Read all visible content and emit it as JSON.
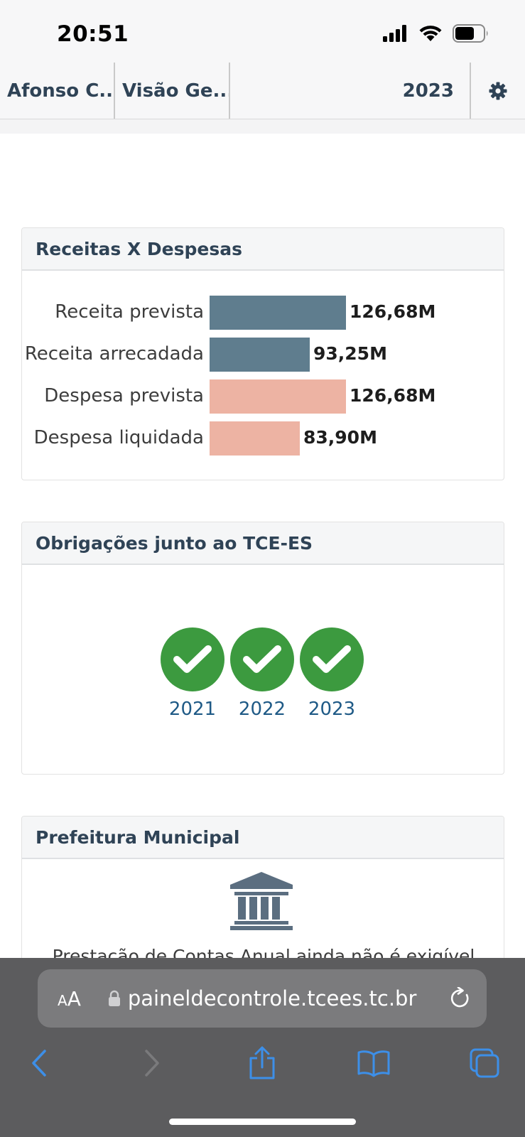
{
  "status": {
    "time": "20:51"
  },
  "nav": {
    "municipality": "Afonso C...",
    "view": "Visão Ge...",
    "year": "2023",
    "settings_icon": "gear-icon"
  },
  "receitas_despesas": {
    "title": "Receitas X Despesas",
    "chart_data": {
      "type": "bar",
      "orientation": "horizontal",
      "categories": [
        "Receita prevista",
        "Receita arrecadada",
        "Despesa prevista",
        "Despesa liquidada"
      ],
      "values": [
        126.68,
        93.25,
        126.68,
        83.9
      ],
      "value_labels": [
        "126,68M",
        "93,25M",
        "126,68M",
        "83,90M"
      ],
      "colors": [
        "#5f7d8e",
        "#5f7d8e",
        "#edb3a3",
        "#edb3a3"
      ],
      "xlim": [
        0,
        126.68
      ],
      "title": "",
      "xlabel": "",
      "ylabel": ""
    }
  },
  "obrigacoes": {
    "title": "Obrigações junto ao TCE-ES",
    "items": [
      {
        "year": "2021",
        "icon": "check-circle-icon",
        "color": "#3c9a3f"
      },
      {
        "year": "2022",
        "icon": "check-circle-icon",
        "color": "#3c9a3f"
      },
      {
        "year": "2023",
        "icon": "check-circle-icon",
        "color": "#3c9a3f"
      }
    ]
  },
  "prefeitura": {
    "title": "Prefeitura Municipal",
    "icon": "bank-icon",
    "message": "Prestação de Contas Anual ainda não é exigível"
  },
  "browser": {
    "aa_label": "AA",
    "url": "paineldecontrole.tcees.tc.br",
    "accent": "#3d8fe8"
  }
}
